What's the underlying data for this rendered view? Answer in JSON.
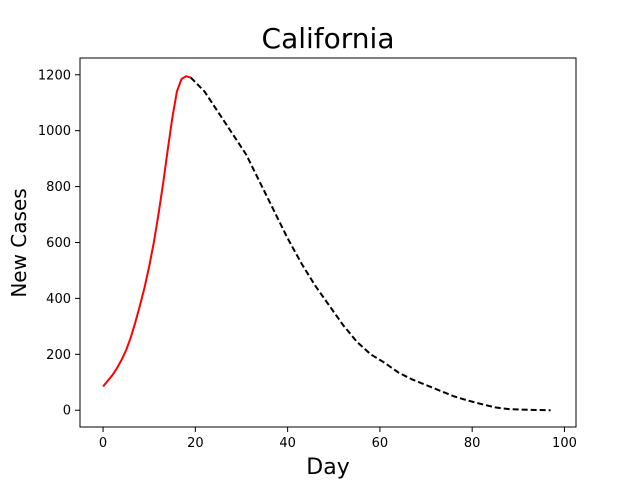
{
  "chart_data": {
    "type": "line",
    "title": "California",
    "xlabel": "Day",
    "ylabel": "New Cases",
    "xlim": [
      -5,
      102.5
    ],
    "ylim": [
      -60,
      1260
    ],
    "xticks": [
      0,
      20,
      40,
      60,
      80,
      100
    ],
    "yticks": [
      0,
      200,
      400,
      600,
      800,
      1000,
      1200
    ],
    "grid": false,
    "series": [
      {
        "color": "#ff0000",
        "style": "solid",
        "x": [
          0,
          1,
          2,
          3,
          4,
          5,
          6,
          7,
          8,
          9,
          10,
          11,
          12,
          13,
          14,
          15,
          16,
          17,
          18,
          19
        ],
        "y": [
          85,
          105,
          125,
          150,
          180,
          215,
          260,
          315,
          375,
          440,
          515,
          600,
          700,
          810,
          930,
          1045,
          1140,
          1185,
          1195,
          1190
        ]
      },
      {
        "color": "#000000",
        "style": "dashed",
        "x": [
          19,
          22,
          25,
          28,
          31,
          34,
          37,
          40,
          43,
          46,
          49,
          52,
          55,
          58,
          61,
          64,
          67,
          70,
          73,
          76,
          79,
          82,
          85,
          88,
          91,
          94,
          97
        ],
        "y": [
          1190,
          1140,
          1065,
          990,
          915,
          815,
          715,
          615,
          525,
          445,
          375,
          305,
          245,
          200,
          170,
          135,
          110,
          90,
          70,
          50,
          35,
          22,
          10,
          4,
          2,
          1,
          0
        ]
      }
    ]
  }
}
